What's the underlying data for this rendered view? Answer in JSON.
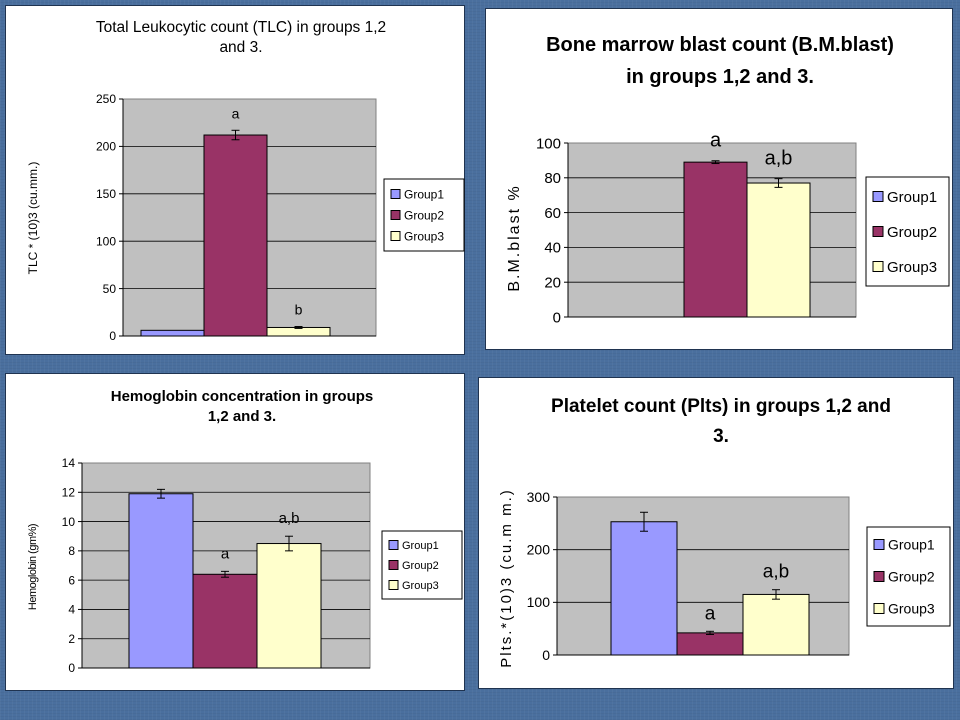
{
  "chart_data": [
    {
      "type": "bar",
      "title": "Total Leukocytic count (TLC) in groups 1,2 and 3.",
      "title_lines": [
        "Total Leukocytic count (TLC) in groups 1,2",
        "and 3."
      ],
      "ylabel": "TLC * (10)3 (cu.mm.)",
      "ylim": [
        0,
        250
      ],
      "yticks": [
        "0",
        "50",
        "100",
        "150",
        "200",
        "250"
      ],
      "ytick_values": [
        0,
        50,
        100,
        150,
        200,
        250
      ],
      "grid": true,
      "legend": "right",
      "series": [
        {
          "name": "Group1",
          "color": "#9999ff",
          "value": 6,
          "error": 0,
          "annotation": ""
        },
        {
          "name": "Group2",
          "color": "#993366",
          "value": 212,
          "error": 5,
          "annotation": "a"
        },
        {
          "name": "Group3",
          "color": "#ffffcc",
          "value": 9,
          "error": 1,
          "annotation": "b"
        }
      ]
    },
    {
      "type": "bar",
      "title": "Bone marrow blast count (B.M.blast) in groups 1,2 and 3.",
      "title_lines": [
        "Bone marrow blast count (B.M.blast)",
        "in groups 1,2 and 3."
      ],
      "ylabel": "B.M.blast %",
      "ylim": [
        0,
        100
      ],
      "yticks": [
        "0",
        "20",
        "40",
        "60",
        "80",
        "100"
      ],
      "ytick_values": [
        0,
        20,
        40,
        60,
        80,
        100
      ],
      "grid": true,
      "legend": "right",
      "series": [
        {
          "name": "Group1",
          "color": "#9999ff",
          "value": 0,
          "error": 0,
          "annotation": ""
        },
        {
          "name": "Group2",
          "color": "#993366",
          "value": 89,
          "error": 0.8,
          "annotation": "a"
        },
        {
          "name": "Group3",
          "color": "#ffffcc",
          "value": 77,
          "error": 2.5,
          "annotation": "a,b"
        }
      ]
    },
    {
      "type": "bar",
      "title": "Hemoglobin concentration in groups 1,2 and 3.",
      "title_lines": [
        "Hemoglobin concentration in groups",
        "1,2 and 3."
      ],
      "ylabel": "Hemoglobin (gm%)",
      "ylim": [
        0,
        14
      ],
      "yticks": [
        "0",
        "2",
        "4",
        "6",
        "8",
        "10",
        "12",
        "14"
      ],
      "ytick_values": [
        0,
        2,
        4,
        6,
        8,
        10,
        12,
        14
      ],
      "grid": true,
      "legend": "right",
      "series": [
        {
          "name": "Group1",
          "color": "#9999ff",
          "value": 11.9,
          "error": 0.3,
          "annotation": ""
        },
        {
          "name": "Group2",
          "color": "#993366",
          "value": 6.4,
          "error": 0.2,
          "annotation": "a"
        },
        {
          "name": "Group3",
          "color": "#ffffcc",
          "value": 8.5,
          "error": 0.5,
          "annotation": "a,b"
        }
      ]
    },
    {
      "type": "bar",
      "title": "Platelet count (Plts) in groups 1,2 and 3.",
      "title_lines": [
        "Platelet count (Plts) in groups 1,2 and",
        "3."
      ],
      "ylabel": "Plts.*(10)3 (cu.m m.)",
      "ylim": [
        0,
        300
      ],
      "yticks": [
        "0",
        "100",
        "200",
        "300"
      ],
      "ytick_values": [
        0,
        100,
        200,
        300
      ],
      "grid": true,
      "legend": "right",
      "series": [
        {
          "name": "Group1",
          "color": "#9999ff",
          "value": 253,
          "error": 18,
          "annotation": ""
        },
        {
          "name": "Group2",
          "color": "#993366",
          "value": 42,
          "error": 3,
          "annotation": "a"
        },
        {
          "name": "Group3",
          "color": "#ffffcc",
          "value": 115,
          "error": 9,
          "annotation": "a,b"
        }
      ]
    }
  ]
}
